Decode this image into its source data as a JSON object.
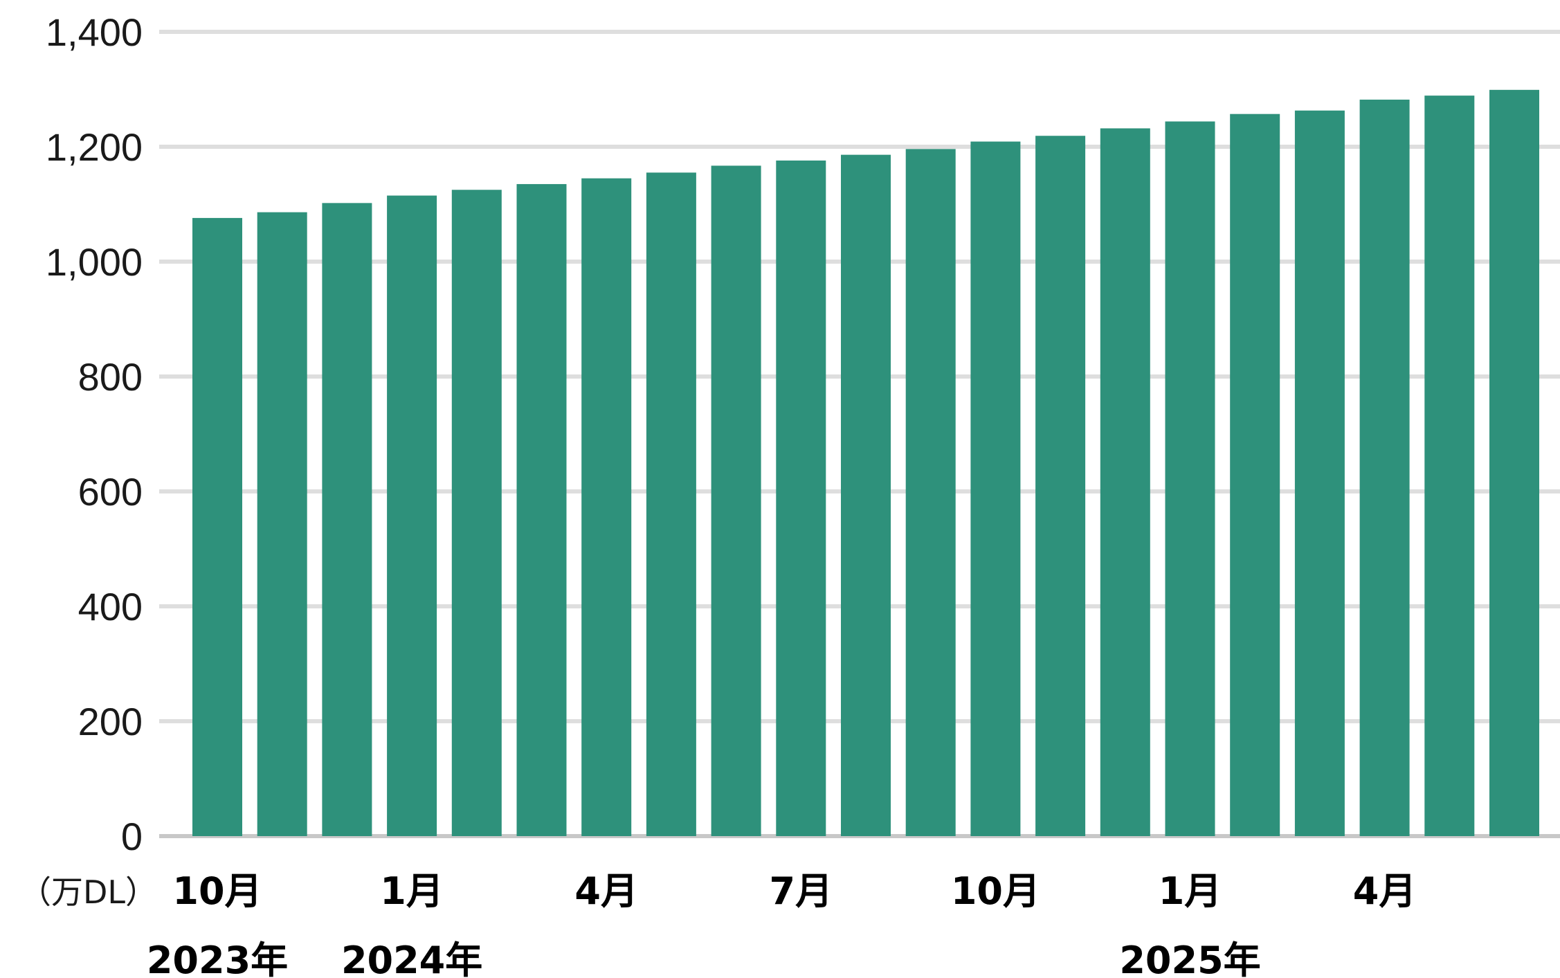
{
  "chart_data": {
    "type": "bar",
    "unit_label": "（万DL）",
    "ylim": [
      0,
      1400
    ],
    "yticks": [
      0,
      200,
      400,
      600,
      800,
      1000,
      1200,
      1400
    ],
    "ytick_labels": [
      "0",
      "200",
      "400",
      "600",
      "800",
      "1,000",
      "1,200",
      "1,400"
    ],
    "grid": true,
    "categories": [
      "10月",
      "",
      "",
      "1月",
      "",
      "",
      "4月",
      "",
      "",
      "7月",
      "",
      "",
      "10月",
      "",
      "",
      "1月",
      "",
      "",
      "4月",
      "",
      ""
    ],
    "year_labels": [
      {
        "index": 0,
        "label": "2023年"
      },
      {
        "index": 3,
        "label": "2024年"
      },
      {
        "index": 15,
        "label": "2025年"
      }
    ],
    "values": [
      1076,
      1086,
      1102,
      1115,
      1125,
      1135,
      1145,
      1155,
      1167,
      1176,
      1186,
      1196,
      1209,
      1219,
      1232,
      1244,
      1257,
      1263,
      1282,
      1289,
      1299
    ],
    "colors": {
      "bar": "#2e917b",
      "grid": "#dedede",
      "axis": "#c8c8c8"
    }
  }
}
